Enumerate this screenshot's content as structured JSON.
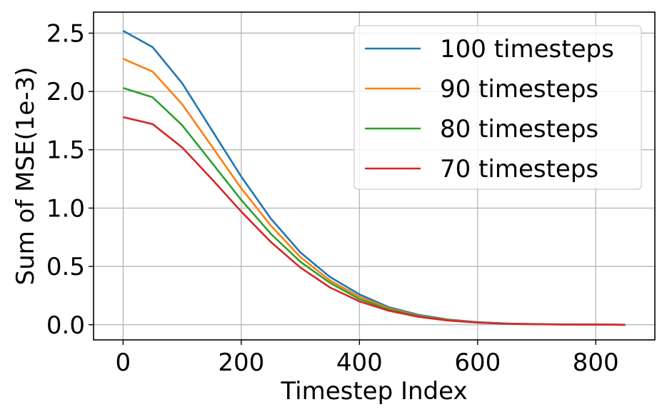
{
  "chart_data": {
    "type": "line",
    "title": "",
    "xlabel": "Timestep Index",
    "ylabel": "Sum of MSE(1e-3)",
    "xlim": [
      -50,
      900
    ],
    "ylim": [
      -0.13,
      2.68
    ],
    "xticks": [
      0,
      200,
      400,
      600,
      800
    ],
    "xtick_labels": [
      "0",
      "200",
      "400",
      "600",
      "800"
    ],
    "yticks": [
      0.0,
      0.5,
      1.0,
      1.5,
      2.0,
      2.5
    ],
    "ytick_labels": [
      "0.0",
      "0.5",
      "1.0",
      "1.5",
      "2.0",
      "2.5"
    ],
    "grid": true,
    "legend_position": "top-right",
    "x": [
      0,
      50,
      100,
      150,
      200,
      250,
      300,
      350,
      400,
      450,
      500,
      550,
      600,
      650,
      700,
      750,
      800,
      850
    ],
    "series": [
      {
        "name": "100 timesteps",
        "color": "#1f77b4",
        "values": [
          2.52,
          2.38,
          2.07,
          1.67,
          1.27,
          0.91,
          0.62,
          0.41,
          0.26,
          0.15,
          0.085,
          0.045,
          0.022,
          0.01,
          0.005,
          0.002,
          0.001,
          0.0
        ]
      },
      {
        "name": "90 timesteps",
        "color": "#ff7f0e",
        "values": [
          2.28,
          2.17,
          1.89,
          1.53,
          1.17,
          0.85,
          0.58,
          0.38,
          0.24,
          0.14,
          0.078,
          0.042,
          0.02,
          0.009,
          0.004,
          0.002,
          0.001,
          0.0
        ]
      },
      {
        "name": "80 timesteps",
        "color": "#2ca02c",
        "values": [
          2.03,
          1.95,
          1.71,
          1.39,
          1.07,
          0.78,
          0.54,
          0.36,
          0.22,
          0.13,
          0.073,
          0.039,
          0.019,
          0.009,
          0.004,
          0.002,
          0.001,
          0.0
        ]
      },
      {
        "name": "70 timesteps",
        "color": "#d62728",
        "values": [
          1.78,
          1.72,
          1.52,
          1.25,
          0.97,
          0.71,
          0.49,
          0.32,
          0.2,
          0.12,
          0.068,
          0.036,
          0.018,
          0.008,
          0.004,
          0.002,
          0.001,
          0.0
        ]
      }
    ]
  }
}
